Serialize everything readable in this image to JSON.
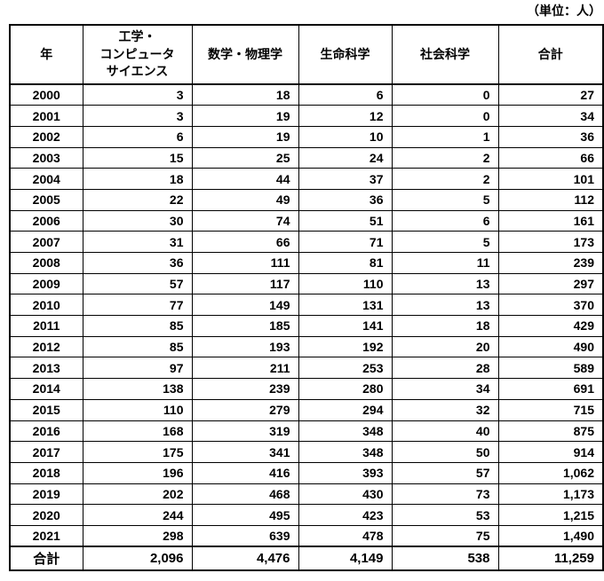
{
  "unit_note": "（単位：人）",
  "colors": {
    "text": "#000000",
    "border": "#000000",
    "background": "#ffffff"
  },
  "table": {
    "columns": [
      {
        "id": "year",
        "label": "年"
      },
      {
        "id": "engineering_cs",
        "label": "工学・\nコンピュータ\nサイエンス"
      },
      {
        "id": "math_physics",
        "label": "数学・物理学"
      },
      {
        "id": "life_science",
        "label": "生命科学"
      },
      {
        "id": "social_science",
        "label": "社会科学"
      },
      {
        "id": "total",
        "label": "合計"
      }
    ],
    "rows": [
      {
        "year": "2000",
        "values": [
          "3",
          "18",
          "6",
          "0",
          "27"
        ]
      },
      {
        "year": "2001",
        "values": [
          "3",
          "19",
          "12",
          "0",
          "34"
        ]
      },
      {
        "year": "2002",
        "values": [
          "6",
          "19",
          "10",
          "1",
          "36"
        ]
      },
      {
        "year": "2003",
        "values": [
          "15",
          "25",
          "24",
          "2",
          "66"
        ]
      },
      {
        "year": "2004",
        "values": [
          "18",
          "44",
          "37",
          "2",
          "101"
        ]
      },
      {
        "year": "2005",
        "values": [
          "22",
          "49",
          "36",
          "5",
          "112"
        ]
      },
      {
        "year": "2006",
        "values": [
          "30",
          "74",
          "51",
          "6",
          "161"
        ]
      },
      {
        "year": "2007",
        "values": [
          "31",
          "66",
          "71",
          "5",
          "173"
        ]
      },
      {
        "year": "2008",
        "values": [
          "36",
          "111",
          "81",
          "11",
          "239"
        ]
      },
      {
        "year": "2009",
        "values": [
          "57",
          "117",
          "110",
          "13",
          "297"
        ]
      },
      {
        "year": "2010",
        "values": [
          "77",
          "149",
          "131",
          "13",
          "370"
        ]
      },
      {
        "year": "2011",
        "values": [
          "85",
          "185",
          "141",
          "18",
          "429"
        ]
      },
      {
        "year": "2012",
        "values": [
          "85",
          "193",
          "192",
          "20",
          "490"
        ]
      },
      {
        "year": "2013",
        "values": [
          "97",
          "211",
          "253",
          "28",
          "589"
        ]
      },
      {
        "year": "2014",
        "values": [
          "138",
          "239",
          "280",
          "34",
          "691"
        ]
      },
      {
        "year": "2015",
        "values": [
          "110",
          "279",
          "294",
          "32",
          "715"
        ]
      },
      {
        "year": "2016",
        "values": [
          "168",
          "319",
          "348",
          "40",
          "875"
        ]
      },
      {
        "year": "2017",
        "values": [
          "175",
          "341",
          "348",
          "50",
          "914"
        ]
      },
      {
        "year": "2018",
        "values": [
          "196",
          "416",
          "393",
          "57",
          "1,062"
        ]
      },
      {
        "year": "2019",
        "values": [
          "202",
          "468",
          "430",
          "73",
          "1,173"
        ]
      },
      {
        "year": "2020",
        "values": [
          "244",
          "495",
          "423",
          "53",
          "1,215"
        ]
      },
      {
        "year": "2021",
        "values": [
          "298",
          "639",
          "478",
          "75",
          "1,490"
        ]
      }
    ],
    "total": {
      "label": "合計",
      "values": [
        "2,096",
        "4,476",
        "4,149",
        "538",
        "11,259"
      ]
    }
  }
}
